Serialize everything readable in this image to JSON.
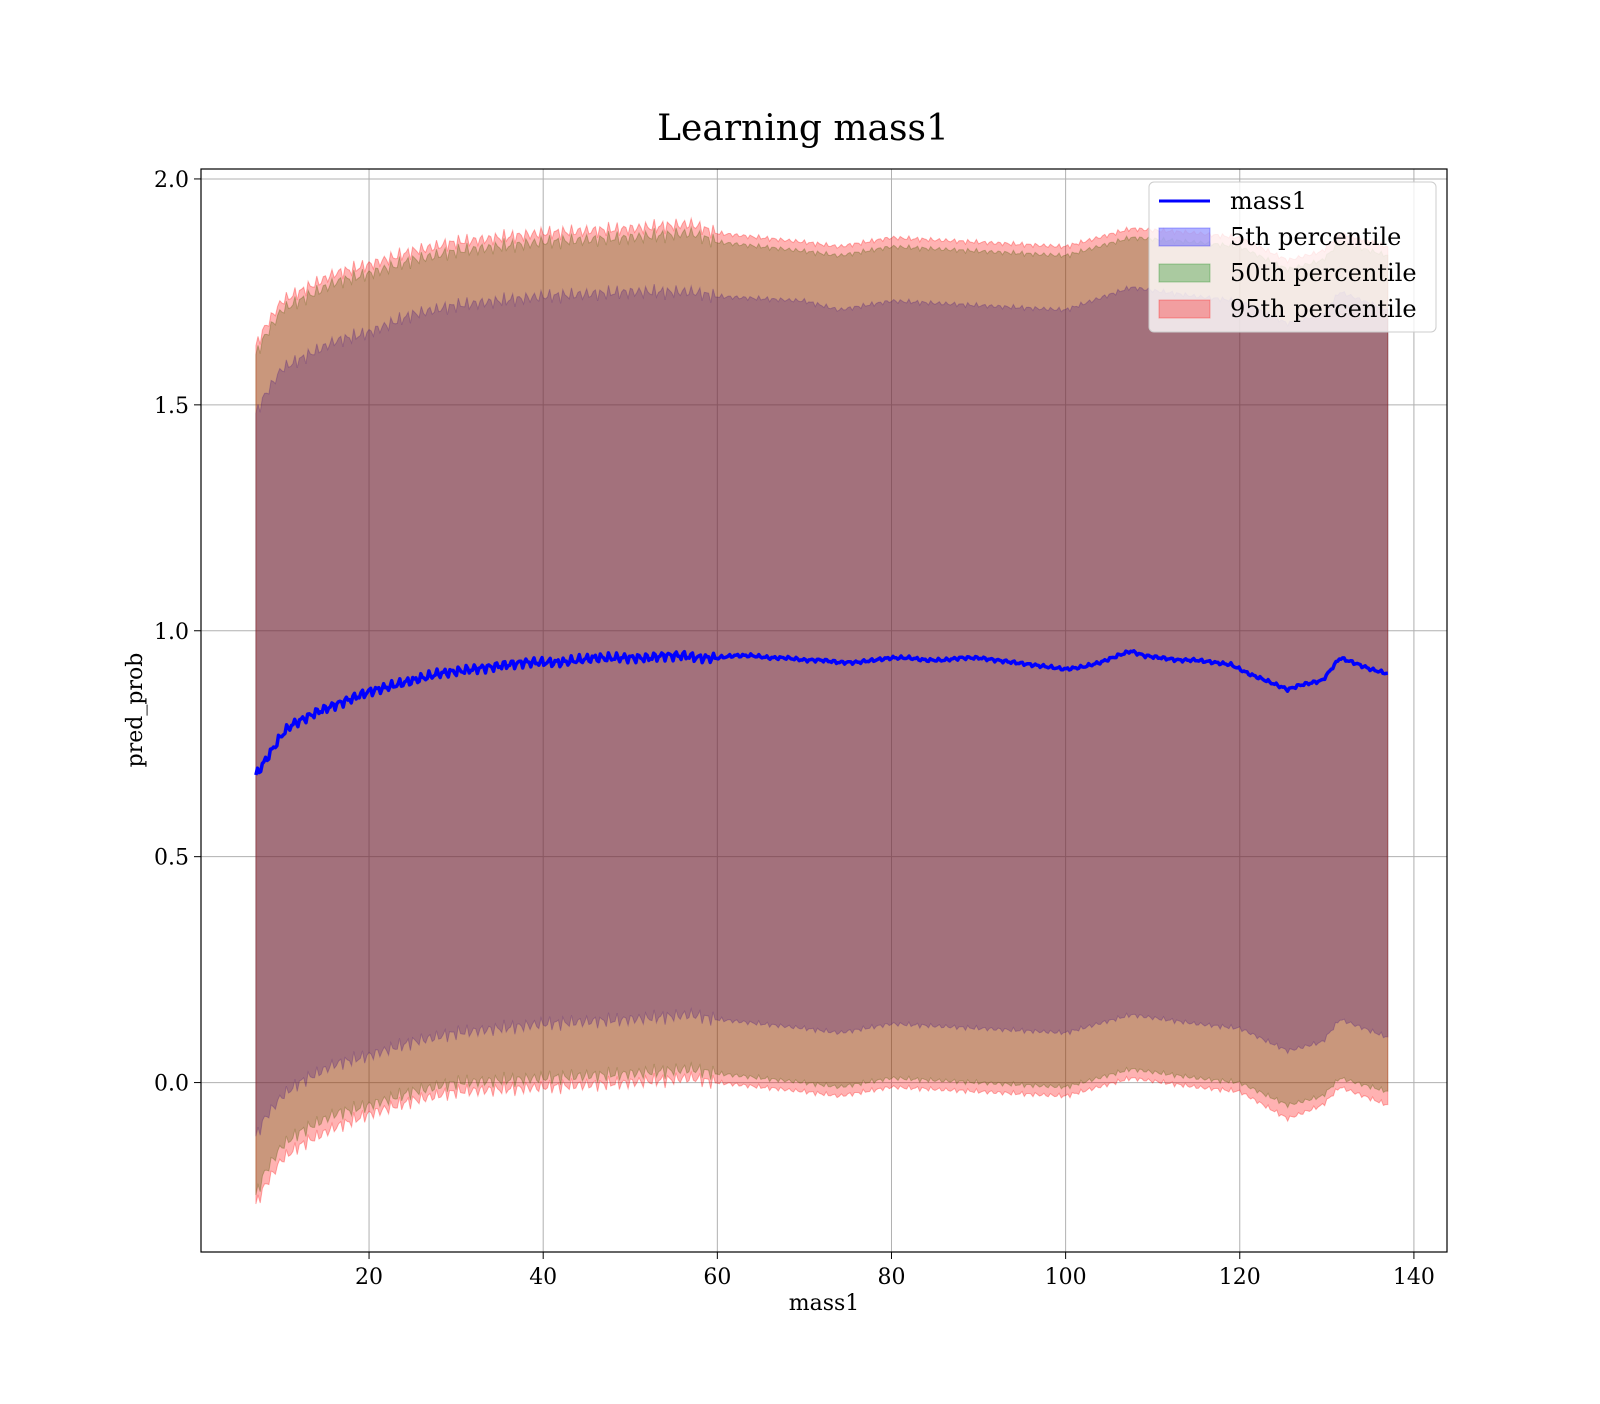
{
  "chart_data": {
    "type": "area",
    "title": "Learning mass1",
    "xlabel": "mass1",
    "ylabel": "pred_prob",
    "xlim": [
      0.7,
      143.8
    ],
    "ylim": [
      -0.375,
      2.022
    ],
    "xticks": [
      20,
      40,
      60,
      80,
      100,
      120,
      140
    ],
    "yticks": [
      0.0,
      0.5,
      1.0,
      1.5,
      2.0
    ],
    "xtick_labels": [
      "20",
      "40",
      "60",
      "80",
      "100",
      "120",
      "140"
    ],
    "ytick_labels": [
      "0.0",
      "0.5",
      "1.0",
      "1.5",
      "2.0"
    ],
    "grid": true,
    "legend_position": "top-right",
    "x_range": [
      7,
      137
    ],
    "line": {
      "name": "mass1",
      "color": "#0000ff",
      "points": [
        [
          7,
          0.68
        ],
        [
          8,
          0.71
        ],
        [
          9,
          0.74
        ],
        [
          10,
          0.77
        ],
        [
          11,
          0.79
        ],
        [
          12,
          0.8
        ],
        [
          13,
          0.81
        ],
        [
          14,
          0.82
        ],
        [
          16,
          0.835
        ],
        [
          18,
          0.85
        ],
        [
          20,
          0.865
        ],
        [
          22,
          0.875
        ],
        [
          24,
          0.885
        ],
        [
          26,
          0.895
        ],
        [
          28,
          0.905
        ],
        [
          30,
          0.91
        ],
        [
          32,
          0.915
        ],
        [
          34,
          0.92
        ],
        [
          36,
          0.925
        ],
        [
          38,
          0.93
        ],
        [
          40,
          0.93
        ],
        [
          42,
          0.93
        ],
        [
          44,
          0.935
        ],
        [
          46,
          0.94
        ],
        [
          48,
          0.94
        ],
        [
          50,
          0.94
        ],
        [
          52,
          0.94
        ],
        [
          54,
          0.945
        ],
        [
          56,
          0.945
        ],
        [
          58,
          0.94
        ],
        [
          60,
          0.94
        ],
        [
          62,
          0.945
        ],
        [
          64,
          0.945
        ],
        [
          66,
          0.94
        ],
        [
          68,
          0.94
        ],
        [
          70,
          0.935
        ],
        [
          72,
          0.935
        ],
        [
          74,
          0.93
        ],
        [
          76,
          0.93
        ],
        [
          78,
          0.935
        ],
        [
          80,
          0.94
        ],
        [
          82,
          0.94
        ],
        [
          84,
          0.935
        ],
        [
          86,
          0.935
        ],
        [
          88,
          0.94
        ],
        [
          90,
          0.94
        ],
        [
          92,
          0.935
        ],
        [
          94,
          0.93
        ],
        [
          96,
          0.925
        ],
        [
          98,
          0.92
        ],
        [
          100,
          0.915
        ],
        [
          102,
          0.92
        ],
        [
          104,
          0.93
        ],
        [
          106,
          0.945
        ],
        [
          107.5,
          0.955
        ],
        [
          109,
          0.945
        ],
        [
          111,
          0.94
        ],
        [
          113,
          0.935
        ],
        [
          115,
          0.935
        ],
        [
          117,
          0.93
        ],
        [
          119,
          0.925
        ],
        [
          121,
          0.905
        ],
        [
          123,
          0.89
        ],
        [
          125.5,
          0.87
        ],
        [
          127,
          0.88
        ],
        [
          129.5,
          0.89
        ],
        [
          131.5,
          0.94
        ],
        [
          133,
          0.93
        ],
        [
          135,
          0.915
        ],
        [
          137,
          0.905
        ]
      ]
    },
    "bands": [
      {
        "name": "5th percentile",
        "color": "#0000ff",
        "opacity": 0.3,
        "points": [
          [
            7,
            -0.12,
            1.48
          ],
          [
            8,
            -0.08,
            1.52
          ],
          [
            10,
            -0.03,
            1.58
          ],
          [
            12,
            0.0,
            1.6
          ],
          [
            16,
            0.04,
            1.64
          ],
          [
            20,
            0.06,
            1.66
          ],
          [
            25,
            0.09,
            1.7
          ],
          [
            30,
            0.11,
            1.72
          ],
          [
            40,
            0.13,
            1.74
          ],
          [
            50,
            0.14,
            1.75
          ],
          [
            57,
            0.15,
            1.75
          ],
          [
            60,
            0.14,
            1.74
          ],
          [
            70,
            0.12,
            1.73
          ],
          [
            74,
            0.11,
            1.71
          ],
          [
            80,
            0.13,
            1.73
          ],
          [
            90,
            0.12,
            1.72
          ],
          [
            100,
            0.11,
            1.71
          ],
          [
            107.5,
            0.15,
            1.76
          ],
          [
            115,
            0.13,
            1.74
          ],
          [
            120,
            0.12,
            1.73
          ],
          [
            125.5,
            0.07,
            1.68
          ],
          [
            129.5,
            0.09,
            1.7
          ],
          [
            131.5,
            0.14,
            1.75
          ],
          [
            137,
            0.1,
            1.71
          ]
        ]
      },
      {
        "name": "50th percentile",
        "color": "#008000",
        "opacity": 0.3,
        "points": [
          [
            7,
            -0.25,
            1.61
          ],
          [
            8,
            -0.2,
            1.65
          ],
          [
            10,
            -0.14,
            1.71
          ],
          [
            12,
            -0.11,
            1.73
          ],
          [
            16,
            -0.07,
            1.77
          ],
          [
            20,
            -0.05,
            1.79
          ],
          [
            25,
            -0.02,
            1.82
          ],
          [
            30,
            0.0,
            1.84
          ],
          [
            40,
            0.01,
            1.86
          ],
          [
            50,
            0.02,
            1.87
          ],
          [
            57,
            0.03,
            1.88
          ],
          [
            60,
            0.02,
            1.86
          ],
          [
            70,
            0.0,
            1.84
          ],
          [
            74,
            -0.01,
            1.83
          ],
          [
            80,
            0.01,
            1.85
          ],
          [
            90,
            0.0,
            1.84
          ],
          [
            100,
            -0.01,
            1.83
          ],
          [
            107.5,
            0.03,
            1.87
          ],
          [
            115,
            0.01,
            1.86
          ],
          [
            120,
            0.0,
            1.85
          ],
          [
            125.5,
            -0.05,
            1.8
          ],
          [
            129.5,
            -0.03,
            1.82
          ],
          [
            131.5,
            0.01,
            1.86
          ],
          [
            137,
            -0.02,
            1.83
          ]
        ]
      },
      {
        "name": "95th percentile",
        "color": "#ff0000",
        "opacity": 0.3,
        "points": [
          [
            7,
            -0.27,
            1.63
          ],
          [
            8,
            -0.23,
            1.67
          ],
          [
            10,
            -0.17,
            1.73
          ],
          [
            12,
            -0.14,
            1.75
          ],
          [
            16,
            -0.1,
            1.79
          ],
          [
            20,
            -0.07,
            1.81
          ],
          [
            25,
            -0.04,
            1.84
          ],
          [
            30,
            -0.02,
            1.86
          ],
          [
            40,
            -0.01,
            1.88
          ],
          [
            50,
            0.0,
            1.89
          ],
          [
            57,
            0.01,
            1.9
          ],
          [
            60,
            0.0,
            1.88
          ],
          [
            70,
            -0.02,
            1.86
          ],
          [
            74,
            -0.03,
            1.85
          ],
          [
            80,
            -0.01,
            1.87
          ],
          [
            90,
            -0.02,
            1.86
          ],
          [
            100,
            -0.03,
            1.85
          ],
          [
            107.5,
            0.01,
            1.89
          ],
          [
            115,
            -0.01,
            1.88
          ],
          [
            120,
            -0.02,
            1.87
          ],
          [
            125.5,
            -0.08,
            1.82
          ],
          [
            129.5,
            -0.05,
            1.84
          ],
          [
            131.5,
            -0.01,
            1.88
          ],
          [
            137,
            -0.05,
            1.85
          ]
        ]
      }
    ]
  }
}
